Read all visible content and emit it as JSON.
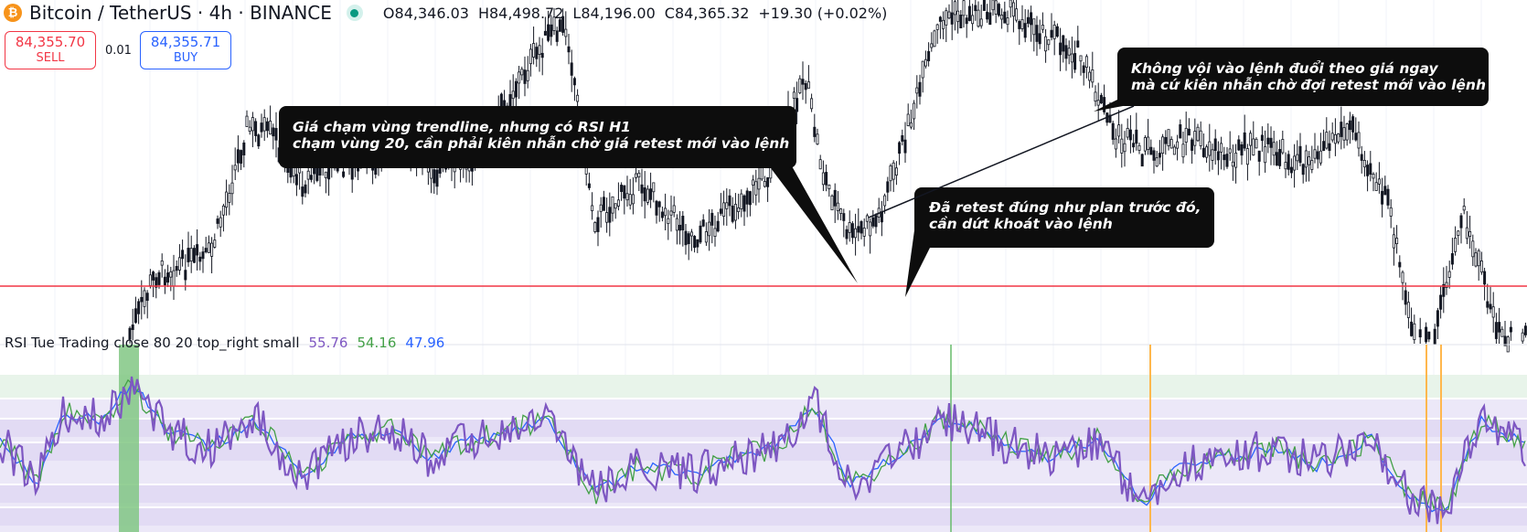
{
  "header": {
    "symbol_icon": "bitcoin-icon",
    "title": "Bitcoin / TetherUS · 4h · BINANCE",
    "status": "market-open-dot",
    "ohlc": [
      {
        "k": "O",
        "v": "84,346.03"
      },
      {
        "k": "H",
        "v": "84,498.72"
      },
      {
        "k": "L",
        "v": "84,196.00"
      },
      {
        "k": "C",
        "v": "84,365.32"
      }
    ],
    "change": "+19.30 (+0.02%)"
  },
  "trade": {
    "sell_price": "84,355.70",
    "sell_label": "SELL",
    "spread": "0.01",
    "buy_price": "84,355.71",
    "buy_label": "BUY"
  },
  "annotations": [
    "Giá chạm vùng trendline, nhưng có RSI H1\nchạm vùng 20, cần phải kiên nhẫn chờ giá retest mới vào lệnh",
    "Đã retest đúng như plan trước đó,\ncần dứt khoát vào lệnh",
    "Không vội vào lệnh đuổi theo giá ngay\nmà cứ kiên nhẫn chờ đợi retest mới vào lệnh"
  ],
  "rsi": {
    "legend": "RSI Tue Trading close 80 20 top_right small",
    "values": [
      "55.76",
      "54.16",
      "47.96"
    ],
    "colors": [
      "#7e57c2",
      "#43a047",
      "#2962ff"
    ]
  },
  "chart_data": [
    {
      "type": "candlestick",
      "series": [
        {
          "name": "Bitcoin / TetherUS · 4h · BINANCE"
        }
      ],
      "support_line_color": "#f23645",
      "candle_color": "#131722",
      "note": "price axis not visible"
    },
    {
      "type": "line",
      "series": [
        {
          "name": "55.76",
          "color": "#7e57c2"
        },
        {
          "name": "54.16",
          "color": "#43a047"
        },
        {
          "name": "47.96",
          "color": "#2962ff"
        }
      ],
      "levels": [
        80,
        20
      ]
    }
  ]
}
